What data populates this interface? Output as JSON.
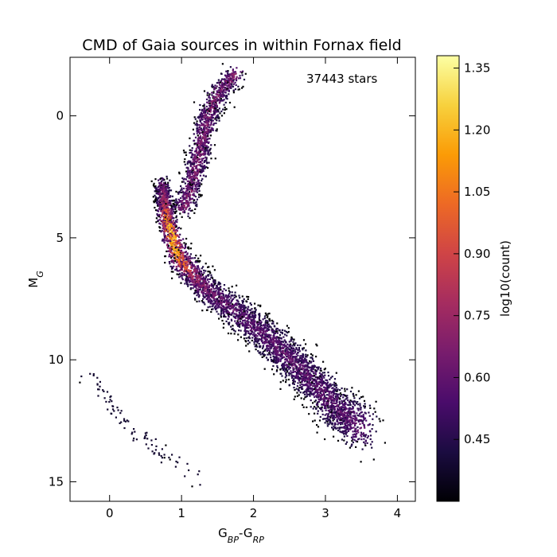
{
  "chart_data": {
    "type": "heatmap",
    "title": "CMD of Gaia sources in within Fornax field",
    "annotation": "37443 stars",
    "xlabel": "G_BP-G_RP",
    "ylabel": "M_G",
    "x_ticks": [
      "0",
      "1",
      "2",
      "3",
      "4"
    ],
    "y_ticks": [
      "0",
      "5",
      "10",
      "15"
    ],
    "xlim": [
      -0.55,
      4.25
    ],
    "ylim": [
      15.8,
      -2.4
    ],
    "y_inverted": true,
    "grid": false,
    "colorbar": {
      "label": "log10(count)",
      "ticks": [
        "0.45",
        "0.60",
        "0.75",
        "0.90",
        "1.05",
        "1.20",
        "1.35"
      ],
      "range": [
        0.3,
        1.38
      ],
      "colormap": "inferno",
      "colors": [
        "#000004",
        "#1b0c41",
        "#4a0c6b",
        "#781c6d",
        "#a52c60",
        "#cf4446",
        "#ed6925",
        "#fb9b06",
        "#f7d13d",
        "#fcffa4"
      ]
    },
    "sequences": [
      {
        "name": "giant branch",
        "points": [
          [
            1.0,
            3.8
          ],
          [
            1.12,
            3.0
          ],
          [
            1.2,
            2.0
          ],
          [
            1.27,
            1.0
          ],
          [
            1.35,
            0.0
          ],
          [
            1.5,
            -1.0
          ],
          [
            1.75,
            -1.8
          ]
        ]
      },
      {
        "name": "main sequence",
        "points": [
          [
            0.72,
            2.8
          ],
          [
            0.78,
            4.2
          ],
          [
            0.95,
            5.8
          ],
          [
            1.3,
            7.0
          ],
          [
            1.75,
            8.0
          ],
          [
            2.2,
            9.1
          ],
          [
            2.55,
            10.1
          ],
          [
            2.85,
            11.0
          ],
          [
            3.15,
            12.0
          ],
          [
            3.5,
            12.8
          ]
        ]
      },
      {
        "name": "white dwarf sequence",
        "points": [
          [
            -0.3,
            10.5
          ],
          [
            0.0,
            11.8
          ],
          [
            0.3,
            12.8
          ],
          [
            0.7,
            13.8
          ],
          [
            1.2,
            14.8
          ]
        ]
      }
    ]
  }
}
